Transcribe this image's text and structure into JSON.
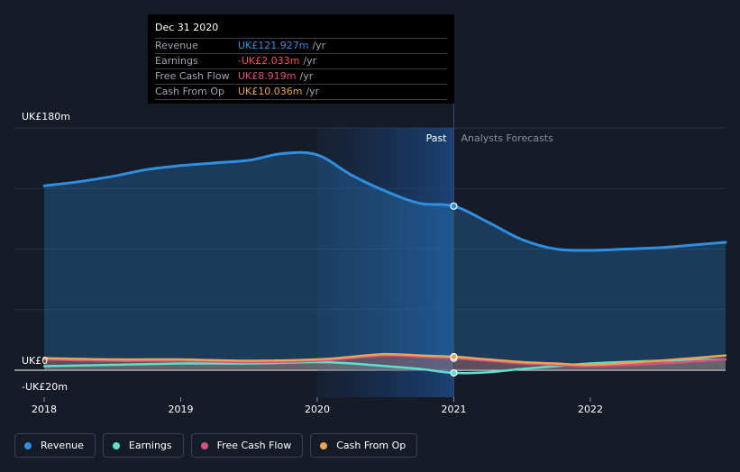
{
  "chart_data": {
    "type": "line",
    "y_top_label": "UK£180m",
    "y_zero_label": "UK£0",
    "y_bottom_label": "-UK£20m",
    "ylim": [
      -20,
      180
    ],
    "xlim": [
      2018.0,
      2022.99
    ],
    "x_ticks": [
      {
        "label": "2018",
        "value": 2018.0
      },
      {
        "label": "2019",
        "value": 2019.0
      },
      {
        "label": "2020",
        "value": 2020.0
      },
      {
        "label": "2021",
        "value": 2021.0
      },
      {
        "label": "2022",
        "value": 2022.0
      }
    ],
    "divider_x": 2021.0,
    "highlight_start_x": 2020.0,
    "past_label": "Past",
    "forecast_label": "Analysts Forecasts",
    "series": [
      {
        "name": "Revenue",
        "color": "#2e8fe0",
        "x": [
          2018.0,
          2018.25,
          2018.5,
          2018.75,
          2019.0,
          2019.25,
          2019.5,
          2019.75,
          2020.0,
          2020.25,
          2020.5,
          2020.75,
          2021.0,
          2021.25,
          2021.5,
          2021.75,
          2022.0,
          2022.25,
          2022.5,
          2022.75,
          2022.99
        ],
        "y": [
          137,
          140,
          144,
          149,
          152,
          154,
          156,
          161,
          160,
          145,
          133,
          124,
          121.9,
          110,
          97,
          90,
          89,
          90,
          91,
          93,
          95
        ]
      },
      {
        "name": "Earnings",
        "color": "#5fdfce",
        "x": [
          2018.0,
          2018.5,
          2019.0,
          2019.5,
          2020.0,
          2020.25,
          2020.5,
          2020.75,
          2021.0,
          2021.25,
          2021.5,
          2021.75,
          2022.0,
          2022.5,
          2022.99
        ],
        "y": [
          3,
          4,
          5,
          5,
          6,
          5,
          3,
          1,
          -2.033,
          -1.5,
          1,
          3,
          5,
          7,
          8
        ]
      },
      {
        "name": "Free Cash Flow",
        "color": "#d8507f",
        "x": [
          2018.0,
          2018.5,
          2019.0,
          2019.5,
          2020.0,
          2020.25,
          2020.5,
          2020.75,
          2021.0,
          2021.25,
          2021.5,
          2021.75,
          2022.0,
          2022.5,
          2022.99
        ],
        "y": [
          8,
          7,
          7,
          6,
          7,
          9,
          11,
          10,
          8.919,
          7,
          5,
          4,
          3,
          5,
          8
        ]
      },
      {
        "name": "Cash From Op",
        "color": "#e8a654",
        "x": [
          2018.0,
          2018.5,
          2019.0,
          2019.5,
          2020.0,
          2020.25,
          2020.5,
          2020.75,
          2021.0,
          2021.25,
          2021.5,
          2021.75,
          2022.0,
          2022.5,
          2022.99
        ],
        "y": [
          9,
          8,
          8,
          7,
          8,
          10,
          12,
          11,
          10.036,
          8,
          6,
          5,
          4,
          7,
          11
        ]
      }
    ]
  },
  "tooltip": {
    "date": "Dec 31 2020",
    "rows": [
      {
        "name": "Revenue",
        "value": "UK£121.927m",
        "unit": "/yr",
        "color": "#2e8fe0"
      },
      {
        "name": "Earnings",
        "value": "-UK£2.033m",
        "unit": "/yr",
        "color": "#ff4d4d"
      },
      {
        "name": "Free Cash Flow",
        "value": "UK£8.919m",
        "unit": "/yr",
        "color": "#d8507f"
      },
      {
        "name": "Cash From Op",
        "value": "UK£10.036m",
        "unit": "/yr",
        "color": "#e8a654"
      }
    ]
  },
  "legend": [
    {
      "label": "Revenue",
      "color": "#2e8fe0"
    },
    {
      "label": "Earnings",
      "color": "#5fdfce"
    },
    {
      "label": "Free Cash Flow",
      "color": "#d8507f"
    },
    {
      "label": "Cash From Op",
      "color": "#e8a654"
    }
  ]
}
